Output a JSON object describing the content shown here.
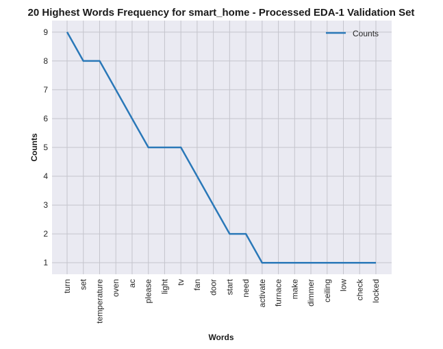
{
  "chart_data": {
    "type": "line",
    "title": "20 Highest Words Frequency for smart_home - Processed EDA-1 Validation Set",
    "xlabel": "Words",
    "ylabel": "Counts",
    "categories": [
      "turn",
      "set",
      "temperature",
      "oven",
      "ac",
      "please",
      "light",
      "tv",
      "fan",
      "door",
      "start",
      "need",
      "activate",
      "furnace",
      "make",
      "dimmer",
      "ceiling",
      "low",
      "check",
      "locked"
    ],
    "series": [
      {
        "name": "Counts",
        "values": [
          9,
          8,
          8,
          7,
          6,
          5,
          5,
          5,
          4,
          3,
          2,
          2,
          1,
          1,
          1,
          1,
          1,
          1,
          1,
          1
        ]
      }
    ],
    "yticks": [
      1,
      2,
      3,
      4,
      5,
      6,
      7,
      8,
      9
    ],
    "ylim": [
      0.6,
      9.4
    ],
    "grid": true,
    "legend_position": "top-right",
    "colors": {
      "line": "#2a78b8",
      "background": "#eaeaf2",
      "grid": "#c4c4cc"
    }
  }
}
